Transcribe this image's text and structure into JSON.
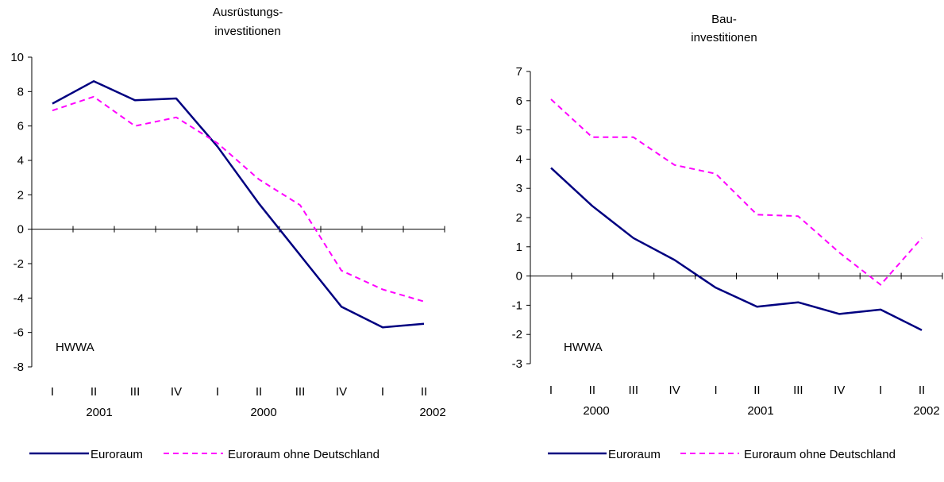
{
  "chart_data": [
    {
      "type": "line",
      "title_lines": [
        "Ausrüstungs-",
        "investitionen"
      ],
      "xlabel": "",
      "ylabel": "",
      "ylim": [
        -8,
        10
      ],
      "yticks": [
        "10",
        "8",
        "6",
        "4",
        "2",
        "0",
        "-2",
        "-4",
        "-6",
        "-8"
      ],
      "categories": [
        "I",
        "II",
        "III",
        "IV",
        "I",
        "II",
        "III",
        "IV",
        "I",
        "II"
      ],
      "year_labels": [
        "2001",
        "2000",
        "2002"
      ],
      "watermark": "HWWA",
      "series": [
        {
          "name": "Euroraum",
          "style": "solid",
          "color": "#000080",
          "values": [
            7.3,
            8.6,
            7.5,
            7.6,
            4.8,
            1.5,
            -1.5,
            -4.5,
            -5.7,
            -5.5
          ]
        },
        {
          "name": "Euroraum ohne Deutschland",
          "style": "dashed",
          "color": "#ff00ff",
          "values": [
            6.9,
            7.7,
            6.0,
            6.5,
            5.0,
            2.9,
            1.4,
            -2.4,
            -3.5,
            -4.2
          ]
        }
      ],
      "legend": "bottom"
    },
    {
      "type": "line",
      "title_lines": [
        "Bau-",
        "investitionen"
      ],
      "xlabel": "",
      "ylabel": "",
      "ylim": [
        -3,
        7
      ],
      "yticks": [
        "7",
        "6",
        "5",
        "4",
        "3",
        "2",
        "1",
        "0",
        "-1",
        "-2",
        "-3"
      ],
      "categories": [
        "I",
        "II",
        "III",
        "IV",
        "I",
        "II",
        "III",
        "IV",
        "I",
        "II"
      ],
      "year_labels": [
        "2000",
        "2001",
        "2002"
      ],
      "watermark": "HWWA",
      "series": [
        {
          "name": "Euroraum",
          "style": "solid",
          "color": "#000080",
          "values": [
            3.7,
            2.4,
            1.3,
            0.55,
            -0.4,
            -1.05,
            -0.9,
            -1.3,
            -1.15,
            -1.85
          ]
        },
        {
          "name": "Euroraum ohne Deutschland",
          "style": "dashed",
          "color": "#ff00ff",
          "values": [
            6.05,
            4.75,
            4.75,
            3.8,
            3.5,
            2.1,
            2.05,
            0.8,
            -0.3,
            1.3
          ]
        }
      ],
      "legend": "bottom"
    }
  ]
}
